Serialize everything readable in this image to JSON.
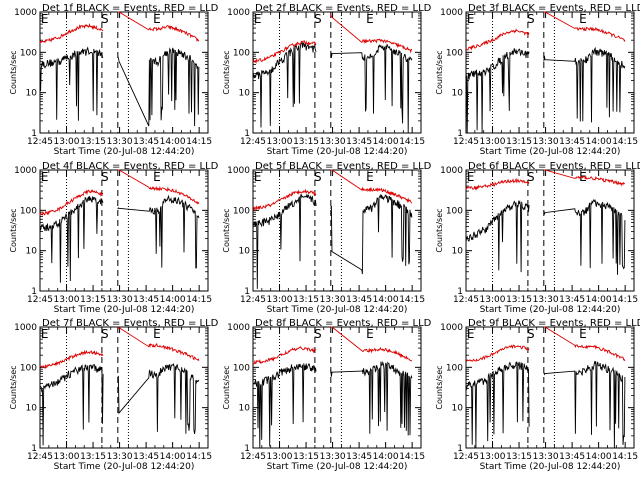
{
  "figure": {
    "xlabel": "Start Time (20-Jul-08 12:44:20)",
    "ylabel": "Counts/sec",
    "legend_text": "BLACK = Events, RED = LLD",
    "colors": {
      "events": "#000000",
      "lld": "#dd0000",
      "axes": "#000000"
    }
  },
  "chart_data": [
    {
      "type": "line",
      "title": "Det 1f BLACK = Events, RED = LLD",
      "xlabel": "Start Time (20-Jul-08 12:44:20)",
      "ylabel": "Counts/sec",
      "yscale": "log",
      "ylim": [
        1,
        1000
      ],
      "xticks": [
        "12:45",
        "13:00",
        "13:15",
        "13:30",
        "13:45",
        "14:00",
        "14:15"
      ],
      "yticks": [
        "1",
        "10",
        "100",
        "1000"
      ],
      "markers": [
        "E",
        "S",
        "E"
      ],
      "series": [
        {
          "name": "Events",
          "color": "#000000",
          "mean": [
            50,
            55,
            60,
            80,
            100,
            110,
            95,
            70,
            0,
            0,
            0,
            0,
            60,
            110,
            100,
            75,
            50,
            35
          ]
        },
        {
          "name": "LLD",
          "color": "#dd0000",
          "mean": [
            170,
            200,
            240,
            330,
            420,
            450,
            380,
            300,
            0,
            0,
            0,
            0,
            380,
            430,
            360,
            280,
            200,
            140
          ]
        }
      ]
    },
    {
      "type": "line",
      "title": "Det 2f BLACK = Events, RED = LLD",
      "xlabel": "Start Time (20-Jul-08 12:44:20)",
      "ylabel": "Counts/sec",
      "yscale": "log",
      "ylim": [
        1,
        1000
      ],
      "xticks": [
        "12:45",
        "13:00",
        "13:15",
        "13:30",
        "13:45",
        "14:00",
        "14:15"
      ],
      "yticks": [
        "1",
        "10",
        "100",
        "1000"
      ],
      "markers": [
        "E",
        "S",
        "E"
      ],
      "series": [
        {
          "name": "Events",
          "color": "#000000",
          "mean": [
            25,
            30,
            40,
            70,
            110,
            150,
            130,
            90,
            0,
            0,
            0,
            0,
            80,
            140,
            120,
            90,
            60,
            40
          ]
        },
        {
          "name": "LLD",
          "color": "#dd0000",
          "mean": [
            60,
            65,
            80,
            110,
            150,
            180,
            170,
            150,
            0,
            0,
            0,
            0,
            190,
            200,
            170,
            140,
            110,
            80
          ]
        }
      ]
    },
    {
      "type": "line",
      "title": "Det 3f BLACK = Events, RED = LLD",
      "xlabel": "Start Time (20-Jul-08 12:44:20)",
      "ylabel": "Counts/sec",
      "yscale": "log",
      "ylim": [
        1,
        1000
      ],
      "xticks": [
        "12:45",
        "13:00",
        "13:15",
        "13:30",
        "13:45",
        "14:00",
        "14:15"
      ],
      "yticks": [
        "1",
        "10",
        "100",
        "1000"
      ],
      "markers": [
        "E",
        "S",
        "E"
      ],
      "series": [
        {
          "name": "Events",
          "color": "#000000",
          "mean": [
            25,
            30,
            35,
            50,
            80,
            110,
            95,
            70,
            0,
            0,
            0,
            0,
            60,
            110,
            95,
            70,
            45,
            30
          ]
        },
        {
          "name": "LLD",
          "color": "#dd0000",
          "mean": [
            120,
            140,
            170,
            220,
            300,
            350,
            300,
            250,
            0,
            0,
            0,
            0,
            380,
            380,
            320,
            260,
            200,
            150
          ]
        }
      ]
    },
    {
      "type": "line",
      "title": "Det 4f BLACK = Events, RED = LLD",
      "xlabel": "Start Time (20-Jul-08 12:44:20)",
      "ylabel": "Counts/sec",
      "yscale": "log",
      "ylim": [
        1,
        1000
      ],
      "xticks": [
        "12:45",
        "13:00",
        "13:15",
        "13:30",
        "13:45",
        "14:00",
        "14:15"
      ],
      "yticks": [
        "1",
        "10",
        "100",
        "1000"
      ],
      "markers": [
        "E",
        "S",
        "E"
      ],
      "series": [
        {
          "name": "Events",
          "color": "#000000",
          "mean": [
            35,
            40,
            50,
            80,
            130,
            200,
            170,
            110,
            0,
            0,
            0,
            0,
            100,
            200,
            170,
            120,
            70,
            45
          ]
        },
        {
          "name": "LLD",
          "color": "#dd0000",
          "mean": [
            80,
            90,
            110,
            160,
            230,
            300,
            270,
            200,
            0,
            0,
            0,
            0,
            350,
            330,
            280,
            210,
            150,
            110
          ]
        }
      ]
    },
    {
      "type": "line",
      "title": "Det 5f BLACK = Events, RED = LLD",
      "xlabel": "Start Time (20-Jul-08 12:44:20)",
      "ylabel": "Counts/sec",
      "yscale": "log",
      "ylim": [
        1,
        1000
      ],
      "xticks": [
        "12:45",
        "13:00",
        "13:15",
        "13:30",
        "13:45",
        "14:00",
        "14:15"
      ],
      "yticks": [
        "1",
        "10",
        "100",
        "1000"
      ],
      "markers": [
        "E",
        "S",
        "E"
      ],
      "series": [
        {
          "name": "Events",
          "color": "#000000",
          "mean": [
            45,
            50,
            60,
            90,
            150,
            220,
            180,
            120,
            0,
            0,
            0,
            0,
            110,
            220,
            180,
            130,
            80,
            50
          ]
        },
        {
          "name": "LLD",
          "color": "#dd0000",
          "mean": [
            110,
            120,
            140,
            190,
            260,
            300,
            280,
            220,
            0,
            0,
            0,
            0,
            330,
            320,
            270,
            210,
            160,
            120
          ]
        }
      ]
    },
    {
      "type": "line",
      "title": "Det 6f BLACK = Events, RED = LLD",
      "xlabel": "Start Time (20-Jul-08 12:44:20)",
      "ylabel": "Counts/sec",
      "yscale": "log",
      "ylim": [
        1,
        1000
      ],
      "xticks": [
        "12:45",
        "13:00",
        "13:15",
        "13:30",
        "13:45",
        "14:00",
        "14:15"
      ],
      "yticks": [
        "1",
        "10",
        "100",
        "1000"
      ],
      "markers": [
        "E",
        "S",
        "E"
      ],
      "series": [
        {
          "name": "Events",
          "color": "#000000",
          "mean": [
            20,
            25,
            35,
            60,
            100,
            150,
            130,
            90,
            0,
            0,
            0,
            0,
            90,
            160,
            140,
            100,
            65,
            40
          ]
        },
        {
          "name": "LLD",
          "color": "#dd0000",
          "mean": [
            350,
            370,
            400,
            450,
            520,
            550,
            500,
            450,
            0,
            0,
            0,
            0,
            650,
            620,
            560,
            500,
            450,
            400
          ]
        }
      ]
    },
    {
      "type": "line",
      "title": "Det 7f BLACK = Events, RED = LLD",
      "xlabel": "Start Time (20-Jul-08 12:44:20)",
      "ylabel": "Counts/sec",
      "yscale": "log",
      "ylim": [
        1,
        1000
      ],
      "xticks": [
        "12:45",
        "13:00",
        "13:15",
        "13:30",
        "13:45",
        "14:00",
        "14:15"
      ],
      "yticks": [
        "1",
        "10",
        "100",
        "1000"
      ],
      "markers": [
        "E",
        "S",
        "E"
      ],
      "series": [
        {
          "name": "Events",
          "color": "#000000",
          "mean": [
            30,
            35,
            45,
            70,
            90,
            100,
            90,
            70,
            0,
            0,
            0,
            0,
            70,
            110,
            95,
            70,
            45,
            30
          ]
        },
        {
          "name": "LLD",
          "color": "#dd0000",
          "mean": [
            100,
            110,
            130,
            170,
            220,
            240,
            220,
            180,
            0,
            0,
            0,
            0,
            350,
            300,
            250,
            200,
            150,
            110
          ]
        }
      ]
    },
    {
      "type": "line",
      "title": "Det 8f BLACK = Events, RED = LLD",
      "xlabel": "Start Time (20-Jul-08 12:44:20)",
      "ylabel": "Counts/sec",
      "yscale": "log",
      "ylim": [
        1,
        1000
      ],
      "xticks": [
        "12:45",
        "13:00",
        "13:15",
        "13:30",
        "13:45",
        "14:00",
        "14:15"
      ],
      "yticks": [
        "1",
        "10",
        "100",
        "1000"
      ],
      "markers": [
        "E",
        "S",
        "E"
      ],
      "series": [
        {
          "name": "Events",
          "color": "#000000",
          "mean": [
            40,
            45,
            55,
            80,
            100,
            110,
            95,
            75,
            0,
            0,
            0,
            0,
            80,
            120,
            100,
            75,
            50,
            35
          ]
        },
        {
          "name": "LLD",
          "color": "#dd0000",
          "mean": [
            130,
            140,
            160,
            210,
            270,
            300,
            270,
            220,
            0,
            0,
            0,
            0,
            260,
            290,
            250,
            200,
            150,
            110
          ]
        }
      ]
    },
    {
      "type": "line",
      "title": "Det 9f BLACK = Events, RED = LLD",
      "xlabel": "Start Time (20-Jul-08 12:44:20)",
      "ylabel": "Counts/sec",
      "yscale": "log",
      "ylim": [
        1,
        1000
      ],
      "xticks": [
        "12:45",
        "13:00",
        "13:15",
        "13:30",
        "13:45",
        "14:00",
        "14:15"
      ],
      "yticks": [
        "1",
        "10",
        "100",
        "1000"
      ],
      "markers": [
        "E",
        "S",
        "E"
      ],
      "series": [
        {
          "name": "Events",
          "color": "#000000",
          "mean": [
            35,
            40,
            50,
            75,
            100,
            120,
            100,
            75,
            0,
            0,
            0,
            0,
            80,
            120,
            100,
            75,
            50,
            35
          ]
        },
        {
          "name": "LLD",
          "color": "#dd0000",
          "mean": [
            140,
            150,
            180,
            230,
            300,
            340,
            300,
            240,
            0,
            0,
            0,
            0,
            330,
            320,
            270,
            210,
            160,
            120
          ]
        }
      ]
    }
  ]
}
